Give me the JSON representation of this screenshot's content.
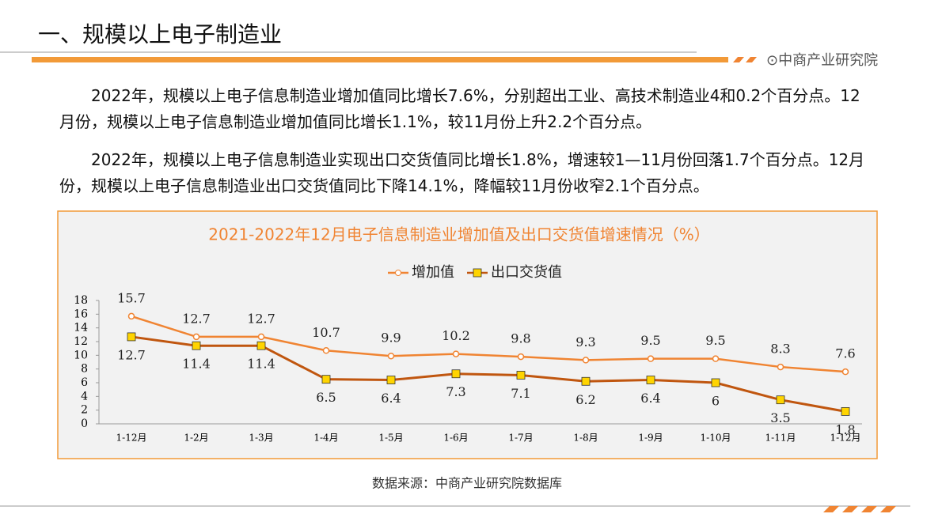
{
  "header": {
    "title": "一、规模以上电子制造业",
    "brand": "⊙中商产业研究院"
  },
  "paragraphs": [
    "2022年，规模以上电子信息制造业增加值同比增长7.6%，分别超出工业、高技术制造业4和0.2个百分点。12月份，规模以上电子信息制造业增加值同比增长1.1%，较11月份上升2.2个百分点。",
    "2022年，规模以上电子信息制造业实现出口交货值同比增长1.8%，增速较1—11月份回落1.7个百分点。12月份，规模以上电子信息制造业出口交货值同比下降14.1%，降幅较11月份收窄2.1个百分点。"
  ],
  "chart_data": {
    "type": "line",
    "title": "2021-2022年12月电子信息制造业增加值及出口交货值增速情况（%）",
    "categories": [
      "1-12月",
      "1-2月",
      "1-3月",
      "1-4月",
      "1-5月",
      "1-6月",
      "1-7月",
      "1-8月",
      "1-9月",
      "1-10月",
      "1-11月",
      "1-12月"
    ],
    "series": [
      {
        "name": "增加值",
        "color": "#f08432",
        "values": [
          15.7,
          12.7,
          12.7,
          10.7,
          9.9,
          10.2,
          9.8,
          9.3,
          9.5,
          9.5,
          8.3,
          7.6
        ]
      },
      {
        "name": "出口交货值",
        "color": "#c0560f",
        "values": [
          12.7,
          11.4,
          11.4,
          6.5,
          6.4,
          7.3,
          7.1,
          6.2,
          6.4,
          6,
          3.5,
          1.8
        ]
      }
    ],
    "ylim": [
      0,
      18
    ],
    "yticks": [
      0,
      2,
      4,
      6,
      8,
      10,
      12,
      14,
      16,
      18
    ],
    "legend": "top"
  },
  "source": "数据来源：中商产业研究院数据库"
}
